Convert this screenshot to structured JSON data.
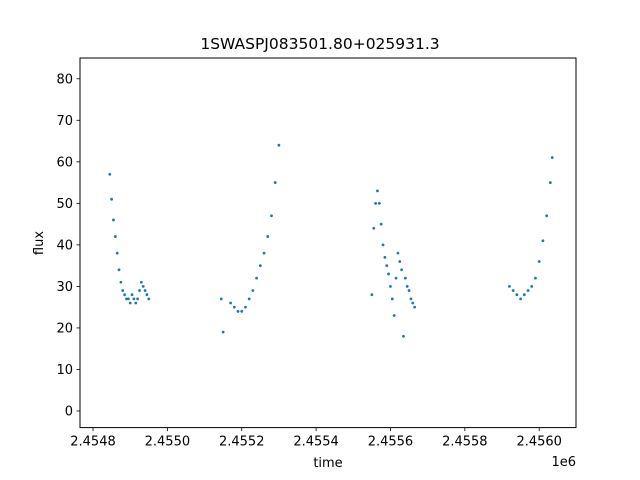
{
  "chart_data": {
    "type": "scatter",
    "title": "1SWASPJ083501.80+025931.3",
    "xlabel": "time",
    "ylabel": "flux",
    "x_offset_label": "1e6",
    "xlim": [
      2454765,
      2456099
    ],
    "ylim": [
      -4,
      85
    ],
    "grid": false,
    "point_color": "#1f77b4",
    "x_ticks": [
      {
        "value": 2454800,
        "label": "2.4548"
      },
      {
        "value": 2455000,
        "label": "2.4550"
      },
      {
        "value": 2455200,
        "label": "2.4552"
      },
      {
        "value": 2455400,
        "label": "2.4554"
      },
      {
        "value": 2455600,
        "label": "2.4556"
      },
      {
        "value": 2455800,
        "label": "2.4558"
      },
      {
        "value": 2456000,
        "label": "2.4560"
      }
    ],
    "y_ticks": [
      {
        "value": 0,
        "label": "0"
      },
      {
        "value": 10,
        "label": "10"
      },
      {
        "value": 20,
        "label": "20"
      },
      {
        "value": 30,
        "label": "30"
      },
      {
        "value": 40,
        "label": "40"
      },
      {
        "value": 50,
        "label": "50"
      },
      {
        "value": 60,
        "label": "60"
      },
      {
        "value": 70,
        "label": "70"
      },
      {
        "value": 80,
        "label": "80"
      }
    ],
    "series": [
      {
        "x": [
          2454845,
          2454850,
          2454855,
          2454860,
          2454865,
          2454870,
          2454875,
          2454880,
          2454885,
          2454890,
          2454895,
          2454900,
          2454905,
          2454910,
          2454915,
          2454920,
          2454925,
          2454930,
          2454935,
          2454940,
          2454945,
          2454950
        ],
        "y": [
          57,
          51,
          46,
          42,
          38,
          34,
          31,
          29,
          28,
          27,
          27,
          26,
          28,
          27,
          26,
          27,
          29,
          31,
          30,
          29,
          28,
          27
        ]
      },
      {
        "x": [
          2455145,
          2455150,
          2455170,
          2455180,
          2455190,
          2455200,
          2455210,
          2455220,
          2455230,
          2455240,
          2455250,
          2455260,
          2455270,
          2455280,
          2455290,
          2455300
        ],
        "y": [
          27,
          19,
          26,
          25,
          24,
          24,
          25,
          27,
          29,
          32,
          35,
          38,
          42,
          47,
          55,
          64
        ]
      },
      {
        "x": [
          2455550,
          2455555,
          2455560,
          2455565,
          2455570,
          2455575,
          2455580,
          2455585,
          2455590,
          2455595,
          2455600,
          2455605,
          2455610,
          2455615,
          2455620,
          2455625,
          2455630,
          2455635,
          2455640,
          2455645,
          2455650,
          2455655,
          2455660,
          2455665
        ],
        "y": [
          28,
          44,
          50,
          53,
          50,
          45,
          40,
          37,
          35,
          33,
          30,
          27,
          23,
          32,
          38,
          36,
          34,
          18,
          32,
          30,
          29,
          27,
          26,
          25
        ]
      },
      {
        "x": [
          2455920,
          2455930,
          2455940,
          2455950,
          2455960,
          2455970,
          2455980,
          2455990,
          2456000,
          2456010,
          2456020,
          2456030,
          2456035
        ],
        "y": [
          30,
          29,
          28,
          27,
          28,
          29,
          30,
          32,
          36,
          41,
          47,
          55,
          61
        ]
      }
    ]
  }
}
